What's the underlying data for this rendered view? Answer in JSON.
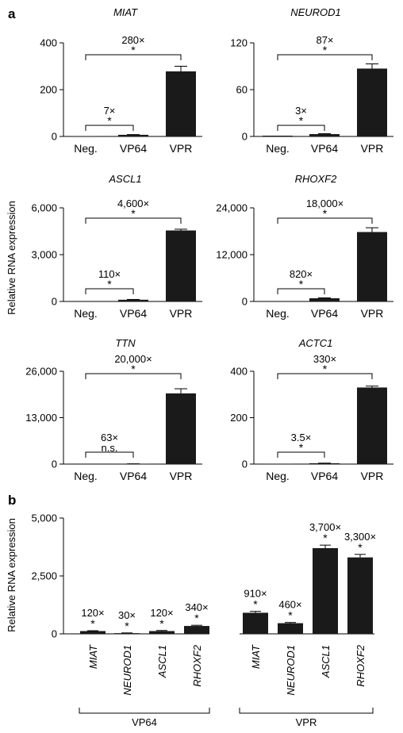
{
  "panel_labels": {
    "a": "a",
    "b": "b"
  },
  "ylabel_a": "Relative RNA expression",
  "ylabel_b": "Relative RNA expression",
  "colors": {
    "bar": "#1a1a1a",
    "axis": "#000000"
  },
  "chart_data": [
    {
      "type": "bar",
      "title": "MIAT",
      "categories": [
        "Neg.",
        "VP64",
        "VPR"
      ],
      "values": [
        1,
        7,
        278
      ],
      "errors": [
        0,
        1,
        22
      ],
      "ylim": [
        0,
        400
      ],
      "yticks": [
        "0",
        "200",
        "400"
      ],
      "brackets": [
        {
          "from": 0,
          "to": 1,
          "fold": "7×",
          "sig": "*"
        },
        {
          "from": 0,
          "to": 2,
          "fold": "280×",
          "sig": "*"
        }
      ]
    },
    {
      "type": "bar",
      "title": "NEUROD1",
      "categories": [
        "Neg.",
        "VP64",
        "VPR"
      ],
      "values": [
        1,
        3,
        87
      ],
      "errors": [
        0,
        0.5,
        6
      ],
      "ylim": [
        0,
        120
      ],
      "yticks": [
        "0",
        "60",
        "120"
      ],
      "brackets": [
        {
          "from": 0,
          "to": 1,
          "fold": "3×",
          "sig": "*"
        },
        {
          "from": 0,
          "to": 2,
          "fold": "87×",
          "sig": "*"
        }
      ]
    },
    {
      "type": "bar",
      "title": "ASCL1",
      "categories": [
        "Neg.",
        "VP64",
        "VPR"
      ],
      "values": [
        1,
        110,
        4550
      ],
      "errors": [
        0,
        20,
        80
      ],
      "ylim": [
        0,
        6000
      ],
      "yticks": [
        "0",
        "3,000",
        "6,000"
      ],
      "brackets": [
        {
          "from": 0,
          "to": 1,
          "fold": "110×",
          "sig": "*"
        },
        {
          "from": 0,
          "to": 2,
          "fold": "4,600×",
          "sig": "*"
        }
      ]
    },
    {
      "type": "bar",
      "title": "RHOXF2",
      "categories": [
        "Neg.",
        "VP64",
        "VPR"
      ],
      "values": [
        1,
        820,
        17800
      ],
      "errors": [
        0,
        100,
        1100
      ],
      "ylim": [
        0,
        24000
      ],
      "yticks": [
        "0",
        "12,000",
        "24,000"
      ],
      "brackets": [
        {
          "from": 0,
          "to": 1,
          "fold": "820×",
          "sig": "*"
        },
        {
          "from": 0,
          "to": 2,
          "fold": "18,000×",
          "sig": "*"
        }
      ]
    },
    {
      "type": "bar",
      "title": "TTN",
      "categories": [
        "Neg.",
        "VP64",
        "VPR"
      ],
      "values": [
        1,
        63,
        19800
      ],
      "errors": [
        0,
        10,
        1300
      ],
      "ylim": [
        0,
        26000
      ],
      "yticks": [
        "0",
        "13,000",
        "26,000"
      ],
      "brackets": [
        {
          "from": 0,
          "to": 1,
          "fold": "63×",
          "sig": "n.s."
        },
        {
          "from": 0,
          "to": 2,
          "fold": "20,000×",
          "sig": "*"
        }
      ]
    },
    {
      "type": "bar",
      "title": "ACTC1",
      "categories": [
        "Neg.",
        "VP64",
        "VPR"
      ],
      "values": [
        1,
        3.5,
        330
      ],
      "errors": [
        0,
        0.5,
        6
      ],
      "ylim": [
        0,
        400
      ],
      "yticks": [
        "0",
        "200",
        "400"
      ],
      "brackets": [
        {
          "from": 0,
          "to": 1,
          "fold": "3.5×",
          "sig": "*"
        },
        {
          "from": 0,
          "to": 2,
          "fold": "330×",
          "sig": "*"
        }
      ]
    },
    {
      "type": "bar",
      "title": "",
      "categories": [
        "MIAT",
        "NEUROD1",
        "ASCL1",
        "RHOXF2",
        "MIAT",
        "NEUROD1",
        "ASCL1",
        "RHOXF2"
      ],
      "groups": [
        {
          "name": "VP64",
          "from": 0,
          "to": 3
        },
        {
          "name": "VPR",
          "from": 4,
          "to": 7
        }
      ],
      "values": [
        120,
        30,
        120,
        340,
        910,
        460,
        3700,
        3300
      ],
      "errors": [
        15,
        10,
        25,
        30,
        60,
        30,
        130,
        130
      ],
      "labels": [
        "120×",
        "30×",
        "120×",
        "340×",
        "910×",
        "460×",
        "3,700×",
        "3,300×"
      ],
      "sig": [
        "*",
        "*",
        "*",
        "*",
        "*",
        "*",
        "*",
        "*"
      ],
      "ylim": [
        0,
        5000
      ],
      "yticks": [
        "0",
        "2,500",
        "5,000"
      ]
    }
  ]
}
